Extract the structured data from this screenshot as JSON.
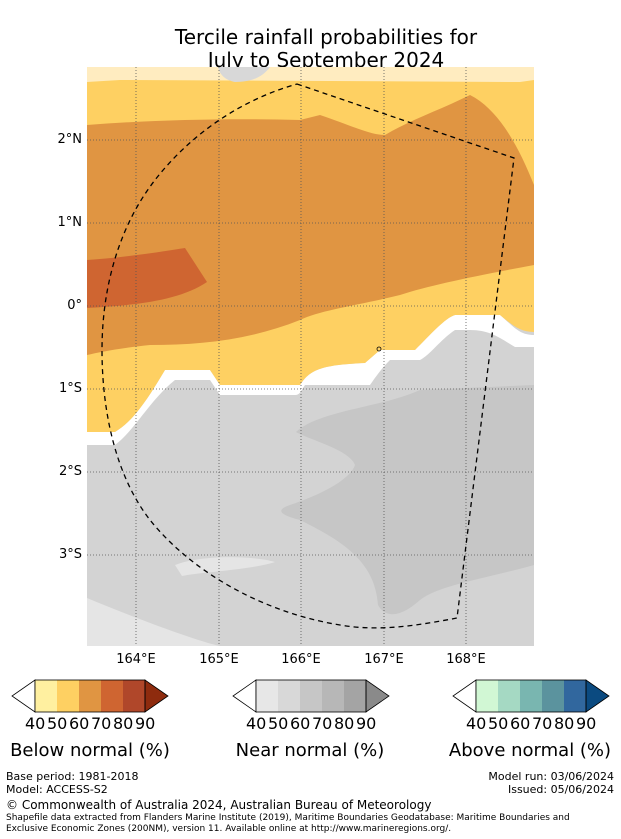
{
  "title": {
    "line1": "Tercile rainfall probabilities for",
    "line2": "July to September 2024"
  },
  "axes": {
    "lat_labels": [
      "2°N",
      "1°N",
      "0°",
      "1°S",
      "2°S",
      "3°S"
    ],
    "lon_labels": [
      "164°E",
      "165°E",
      "166°E",
      "167°E",
      "168°E"
    ]
  },
  "colors": {
    "below": [
      "#ffffff",
      "#fff0a0",
      "#fed062",
      "#e09542",
      "#cf6531",
      "#b0472a",
      "#8e2b0e"
    ],
    "near": [
      "#ffffff",
      "#e7e7e7",
      "#d8d8d8",
      "#c6c6c6",
      "#b7b7b7",
      "#a4a4a4",
      "#8a8a8a"
    ],
    "above": [
      "#ffffff",
      "#d1f7d4",
      "#a5d9c3",
      "#79b6b0",
      "#5b939e",
      "#31679e",
      "#0b4a80"
    ],
    "map_light_grey": "#dcdcdc",
    "map_grey": "#d3d3d3",
    "map_dark_grey": "#c6c6c6",
    "map_pale_grey": "#e5e5e5"
  },
  "legends": [
    {
      "title": "Below normal (%)",
      "ticks": [
        "40",
        "50",
        "60",
        "70",
        "80",
        "90"
      ]
    },
    {
      "title": "Near normal (%)",
      "ticks": [
        "40",
        "50",
        "60",
        "70",
        "80",
        "90"
      ]
    },
    {
      "title": "Above normal (%)",
      "ticks": [
        "40",
        "50",
        "60",
        "70",
        "80",
        "90"
      ]
    }
  ],
  "footer": {
    "base_period": "Base period: 1981-2018",
    "model": "Model: ACCESS-S2",
    "model_run": "Model run: 03/06/2024",
    "issued": "Issued: 05/06/2024",
    "copyright": "© Commonwealth of Australia 2024, Australian Bureau of Meteorology",
    "shapefile_line1": "Shapefile data extracted from Flanders Marine Institute (2019), Maritime Boundaries Geodatabase: Maritime Boundaries and",
    "shapefile_line2": "Exclusive Economic Zones (200NM), version 11. Available online at http://www.marineregions.org/."
  }
}
